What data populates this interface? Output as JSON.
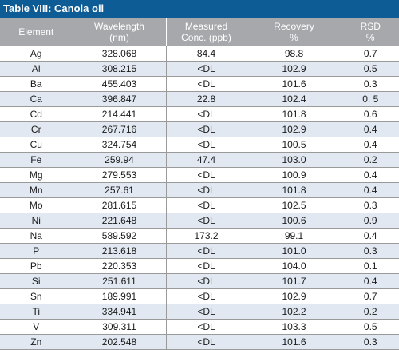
{
  "title": "Table VIII: Canola oil",
  "table": {
    "headers": [
      [
        "Element"
      ],
      [
        "Wavelength",
        "(nm)"
      ],
      [
        "Measured",
        "Conc. (ppb)"
      ],
      [
        "Recovery",
        "%"
      ],
      [
        "RSD",
        "%"
      ]
    ],
    "rows": [
      [
        "Ag",
        "328.068",
        "84.4",
        "98.8",
        "0.7"
      ],
      [
        "Al",
        "308.215",
        "<DL",
        "102.9",
        "0.5"
      ],
      [
        "Ba",
        "455.403",
        "<DL",
        "101.6",
        "0.3"
      ],
      [
        "Ca",
        "396.847",
        "22.8",
        "102.4",
        "0. 5"
      ],
      [
        "Cd",
        "214.441",
        "<DL",
        "101.8",
        "0.6"
      ],
      [
        "Cr",
        "267.716",
        "<DL",
        "102.9",
        "0.4"
      ],
      [
        "Cu",
        "324.754",
        "<DL",
        "100.5",
        "0.4"
      ],
      [
        "Fe",
        "259.94",
        "47.4",
        "103.0",
        "0.2"
      ],
      [
        "Mg",
        "279.553",
        "<DL",
        "100.9",
        "0.4"
      ],
      [
        "Mn",
        "257.61",
        "<DL",
        "101.8",
        "0.4"
      ],
      [
        "Mo",
        "281.615",
        "<DL",
        "102.5",
        "0.3"
      ],
      [
        "Ni",
        "221.648",
        "<DL",
        "100.6",
        "0.9"
      ],
      [
        "Na",
        "589.592",
        "173.2",
        "99.1",
        "0.4"
      ],
      [
        "P",
        "213.618",
        "<DL",
        "101.0",
        "0.3"
      ],
      [
        "Pb",
        "220.353",
        "<DL",
        "104.0",
        "0.1"
      ],
      [
        "Si",
        "251.611",
        "<DL",
        "101.7",
        "0.4"
      ],
      [
        "Sn",
        "189.991",
        "<DL",
        "102.9",
        "0.7"
      ],
      [
        "Ti",
        "334.941",
        "<DL",
        "102.2",
        "0.2"
      ],
      [
        "V",
        "309.311",
        "<DL",
        "103.3",
        "0.5"
      ],
      [
        "Zn",
        "202.548",
        "<DL",
        "101.6",
        "0.3"
      ]
    ]
  },
  "colors": {
    "title_bg": "#0e5c95",
    "header_bg": "#a6a8ab",
    "stripe_bg": "#e1e8f1"
  }
}
